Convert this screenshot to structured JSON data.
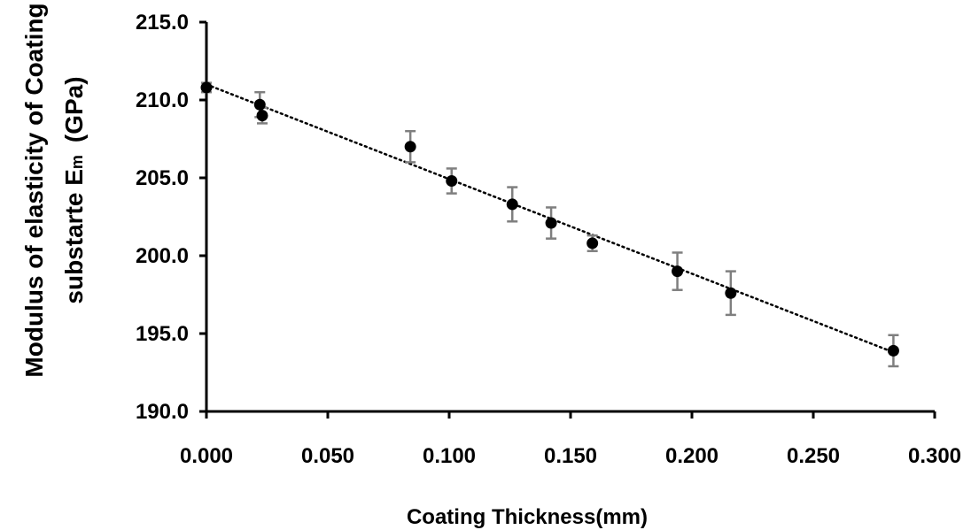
{
  "chart_data": {
    "type": "scatter",
    "title": "",
    "xlabel": "Coating Thickness(mm)",
    "ylabel_line1": "Modulus of elasticity of Coating",
    "ylabel_line2": "substarte E",
    "ylabel_subscript": "m",
    "ylabel_unit": "(GPa)",
    "xlim": [
      0.0,
      0.3
    ],
    "ylim": [
      190.0,
      215.0
    ],
    "x_ticks": [
      "0.000",
      "0.050",
      "0.100",
      "0.150",
      "0.200",
      "0.250",
      "0.300"
    ],
    "y_ticks": [
      "190.0",
      "195.0",
      "200.0",
      "205.0",
      "210.0",
      "215.0"
    ],
    "grid": false,
    "trendline": {
      "style": "dotted",
      "x": [
        0.0,
        0.283
      ],
      "y": [
        211.0,
        193.8
      ]
    },
    "series": [
      {
        "x": [
          0.0,
          0.022,
          0.023,
          0.084,
          0.101,
          0.126,
          0.142,
          0.159,
          0.194,
          0.216,
          0.283
        ],
        "y": [
          210.8,
          209.7,
          209.0,
          207.0,
          204.8,
          203.3,
          202.1,
          200.8,
          199.0,
          197.6,
          193.9
        ],
        "error": [
          0.3,
          0.8,
          0.5,
          1.0,
          0.8,
          1.1,
          1.0,
          0.5,
          1.2,
          1.4,
          1.0
        ]
      }
    ],
    "colors": {
      "marker": "#000000",
      "error_bar": "#7f7f7f",
      "trendline": "#000000",
      "axis": "#000000"
    }
  }
}
